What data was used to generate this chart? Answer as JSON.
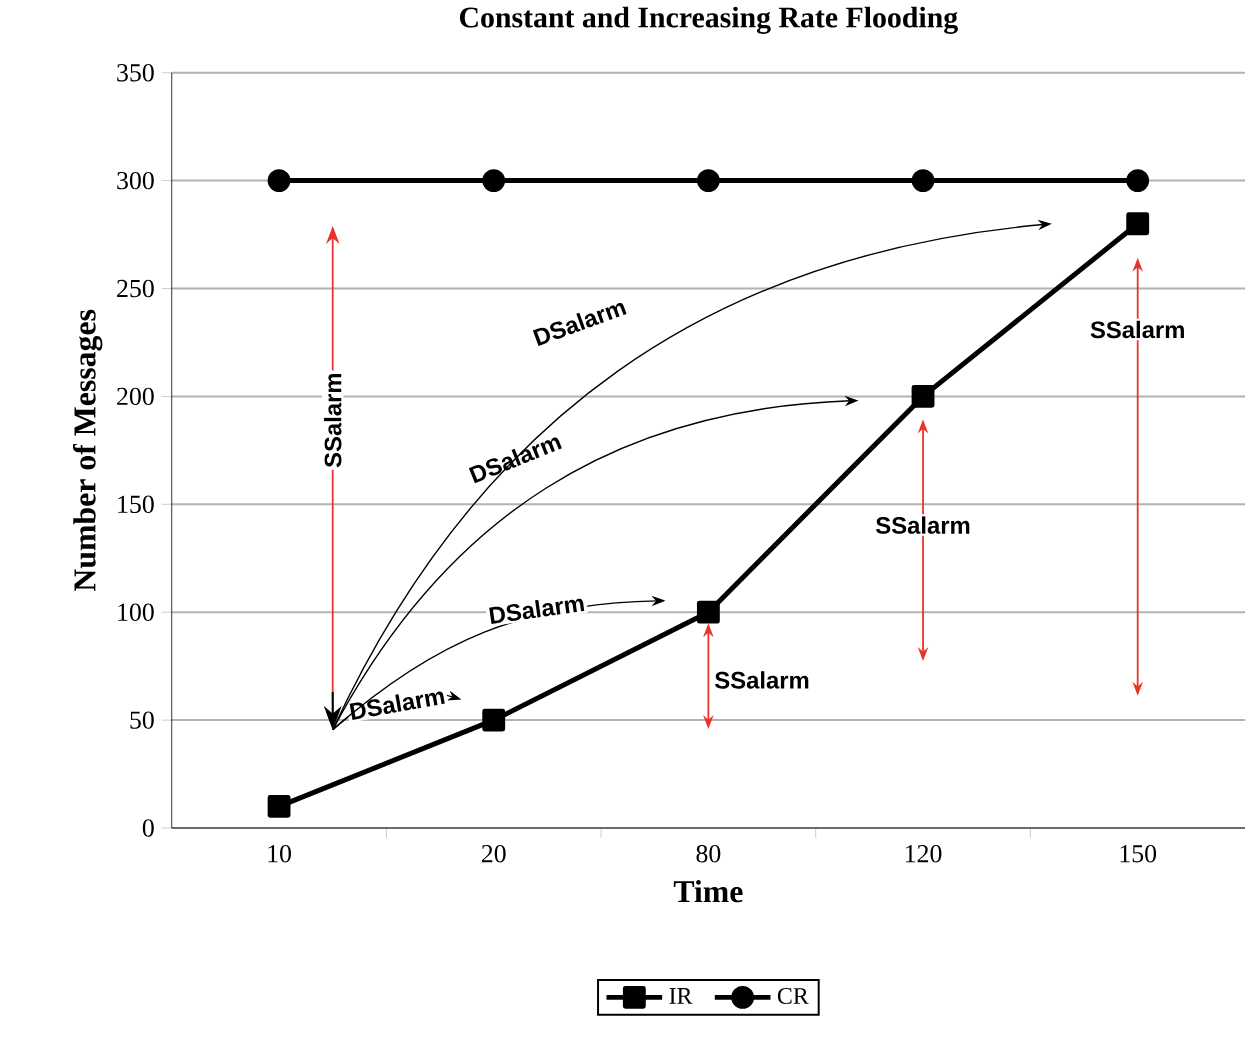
{
  "chart_data": {
    "type": "line",
    "title": "Constant and Increasing Rate Flooding",
    "xlabel": "Time",
    "ylabel": "Number of Messages",
    "categories": [
      "10",
      "20",
      "80",
      "120",
      "150"
    ],
    "series": [
      {
        "name": "IR",
        "color": "#000000",
        "marker": "square",
        "values": [
          10,
          50,
          100,
          200,
          280
        ]
      },
      {
        "name": "CR",
        "color": "#000000",
        "marker": "circle",
        "values": [
          300,
          300,
          300,
          300,
          300
        ]
      }
    ],
    "ylim": [
      0,
      350
    ],
    "yticks": [
      0,
      50,
      100,
      150,
      200,
      250,
      300,
      350
    ],
    "grid": "y",
    "legend": "bottom",
    "line_style": "solid",
    "annotations": [
      "DSalarm",
      "DSalarm",
      "DSalarm",
      "DSalarm",
      "SSalarm",
      "SSalarm",
      "SSalarm",
      "SSalarm"
    ]
  }
}
